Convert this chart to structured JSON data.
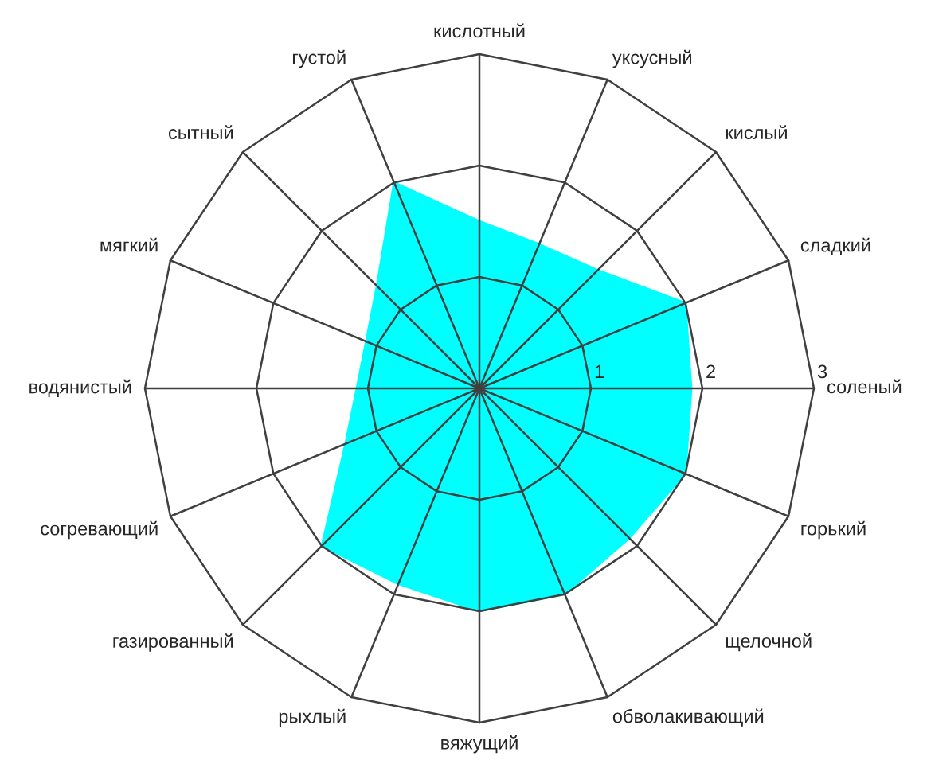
{
  "chart_data": {
    "type": "radar",
    "categories": [
      "кислотный",
      "уксусный",
      "кислый",
      "сладкий",
      "соленый",
      "горький",
      "щелочной",
      "обволакивающий",
      "вяжущий",
      "рыхлый",
      "газированный",
      "согревающий",
      "водянистый",
      "мягкий",
      "сытный",
      "густой"
    ],
    "series": [
      {
        "color": "#00ffff",
        "values": [
          1.5,
          1.4,
          1.5,
          2,
          1.9,
          2,
          1.9,
          2,
          2,
          1.9,
          2,
          1.3,
          1.1,
          1.1,
          1.3,
          2
        ]
      }
    ],
    "ylim": [
      0,
      3
    ],
    "yticks": [
      1,
      2,
      3
    ],
    "grid": true
  }
}
